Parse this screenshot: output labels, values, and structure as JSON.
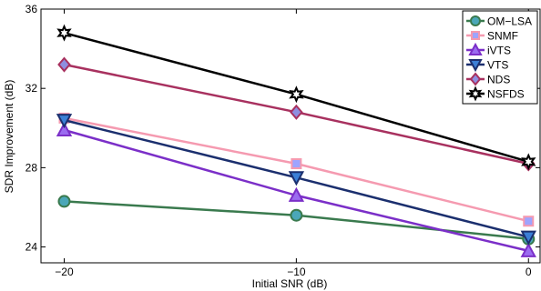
{
  "chart_data": {
    "type": "line",
    "title": "",
    "xlabel": "Initial SNR (dB)",
    "ylabel": "SDR Improvement (dB)",
    "x": [
      -20,
      -10,
      0
    ],
    "xticks": [
      "−20",
      "−10",
      "0"
    ],
    "yticks": [
      "24",
      "28",
      "32",
      "36"
    ],
    "xlim": [
      -21,
      0.5
    ],
    "ylim": [
      23.2,
      36
    ],
    "grid": false,
    "legend_position": "top-right",
    "series": [
      {
        "name": "OM−LSA",
        "values": [
          26.3,
          25.6,
          24.4
        ],
        "color": "#3a7a4e",
        "marker_fill": "#4aa7b8",
        "marker": "circle"
      },
      {
        "name": "SNMF",
        "values": [
          30.5,
          28.2,
          25.3
        ],
        "color": "#f59ab0",
        "marker_fill": "#9ea4ff",
        "marker": "square"
      },
      {
        "name": "iVTS",
        "values": [
          29.9,
          26.6,
          23.8
        ],
        "color": "#7b2fc8",
        "marker_fill": "#9b6cf0",
        "marker": "triangle-up"
      },
      {
        "name": "VTS",
        "values": [
          30.4,
          27.5,
          24.5
        ],
        "color": "#1b2f6e",
        "marker_fill": "#3b7fd6",
        "marker": "triangle-down"
      },
      {
        "name": "NDS",
        "values": [
          33.2,
          30.8,
          28.2
        ],
        "color": "#a8315f",
        "marker_fill": "#8f8fe0",
        "marker": "diamond"
      },
      {
        "name": "NSFDS",
        "values": [
          34.8,
          31.7,
          28.3
        ],
        "color": "#000000",
        "marker_fill": "#ffffff",
        "marker": "hexagram"
      }
    ]
  }
}
